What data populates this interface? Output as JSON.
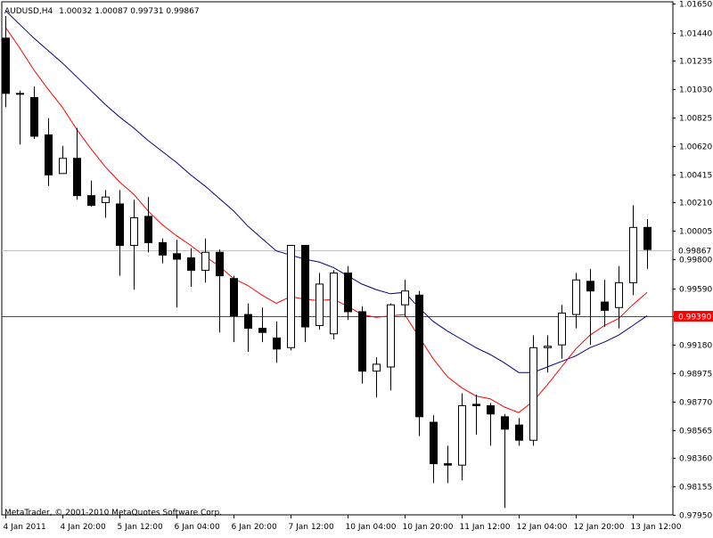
{
  "chart_data": {
    "type": "candlestick",
    "title": "AUDUSD,H4  1.00032 1.00087 0.99731 0.99867",
    "symbol": "AUDUSD,H4",
    "ohlc_header": "1.00032 1.00087 0.99731 0.99867",
    "copyright": "MetaTrader, © 2001-2010 MetaQuotes Software Corp.",
    "current_price": 0.99867,
    "current_price_label": "0.99867",
    "horizontal_level": 0.9939,
    "horizontal_level_label": "0.99390",
    "ylim": [
      0.9795,
      1.0165
    ],
    "y_ticks": [
      "1.01650",
      "1.01440",
      "1.01235",
      "1.01030",
      "1.00825",
      "1.00620",
      "1.00415",
      "1.00210",
      "1.00005",
      "0.99800",
      "0.99590",
      "0.99390",
      "0.99180",
      "0.98975",
      "0.98770",
      "0.98565",
      "0.98360",
      "0.98155",
      "0.97950"
    ],
    "x_ticks": [
      {
        "label": "4 Jan 2011",
        "bar": 0
      },
      {
        "label": "4 Jan 20:00",
        "bar": 4
      },
      {
        "label": "5 Jan 12:00",
        "bar": 8
      },
      {
        "label": "6 Jan 04:00",
        "bar": 12
      },
      {
        "label": "6 Jan 20:00",
        "bar": 16
      },
      {
        "label": "7 Jan 12:00",
        "bar": 20
      },
      {
        "label": "10 Jan 04:00",
        "bar": 24
      },
      {
        "label": "10 Jan 20:00",
        "bar": 28
      },
      {
        "label": "11 Jan 12:00",
        "bar": 32
      },
      {
        "label": "12 Jan 04:00",
        "bar": 36
      },
      {
        "label": "12 Jan 20:00",
        "bar": 40
      },
      {
        "label": "13 Jan 12:00",
        "bar": 44
      }
    ],
    "candles": [
      {
        "o": 1.014,
        "h": 1.0156,
        "l": 1.009,
        "c": 1.01
      },
      {
        "o": 1.01,
        "h": 1.0102,
        "l": 1.0063,
        "c": 1.01
      },
      {
        "o": 1.0097,
        "h": 1.0105,
        "l": 1.0067,
        "c": 1.0069
      },
      {
        "o": 1.007,
        "h": 1.0082,
        "l": 1.0033,
        "c": 1.0041
      },
      {
        "o": 1.0042,
        "h": 1.0062,
        "l": 1.0042,
        "c": 1.0053
      },
      {
        "o": 1.0053,
        "h": 1.0075,
        "l": 1.0023,
        "c": 1.0026
      },
      {
        "o": 1.0026,
        "h": 1.0037,
        "l": 1.0018,
        "c": 1.0019
      },
      {
        "o": 1.0021,
        "h": 1.003,
        "l": 1.001,
        "c": 1.0025
      },
      {
        "o": 1.002,
        "h": 1.003,
        "l": 0.9968,
        "c": 0.999
      },
      {
        "o": 0.999,
        "h": 1.0023,
        "l": 0.9958,
        "c": 1.001
      },
      {
        "o": 1.0011,
        "h": 1.0025,
        "l": 0.9985,
        "c": 0.9992
      },
      {
        "o": 0.9992,
        "h": 0.9995,
        "l": 0.9977,
        "c": 0.9983
      },
      {
        "o": 0.9984,
        "h": 0.9994,
        "l": 0.9945,
        "c": 0.998
      },
      {
        "o": 0.9981,
        "h": 0.9988,
        "l": 0.996,
        "c": 0.9972
      },
      {
        "o": 0.9972,
        "h": 0.9995,
        "l": 0.9963,
        "c": 0.9985
      },
      {
        "o": 0.9985,
        "h": 0.9987,
        "l": 0.9927,
        "c": 0.9968
      },
      {
        "o": 0.9966,
        "h": 0.9968,
        "l": 0.992,
        "c": 0.9939
      },
      {
        "o": 0.994,
        "h": 0.9948,
        "l": 0.9913,
        "c": 0.993
      },
      {
        "o": 0.993,
        "h": 0.9945,
        "l": 0.992,
        "c": 0.9927
      },
      {
        "o": 0.9923,
        "h": 0.9935,
        "l": 0.9905,
        "c": 0.9915
      },
      {
        "o": 0.9916,
        "h": 0.999,
        "l": 0.9914,
        "c": 0.999
      },
      {
        "o": 0.999,
        "h": 0.999,
        "l": 0.992,
        "c": 0.9931
      },
      {
        "o": 0.9932,
        "h": 0.997,
        "l": 0.9929,
        "c": 0.9962
      },
      {
        "o": 0.9926,
        "h": 0.9972,
        "l": 0.9922,
        "c": 0.997
      },
      {
        "o": 0.997,
        "h": 0.9975,
        "l": 0.9936,
        "c": 0.9942
      },
      {
        "o": 0.9942,
        "h": 0.9946,
        "l": 0.989,
        "c": 0.9899
      },
      {
        "o": 0.9899,
        "h": 0.9909,
        "l": 0.988,
        "c": 0.9904
      },
      {
        "o": 0.9902,
        "h": 0.9948,
        "l": 0.9885,
        "c": 0.9947
      },
      {
        "o": 0.9947,
        "h": 0.9965,
        "l": 0.9938,
        "c": 0.9957
      },
      {
        "o": 0.9954,
        "h": 0.9957,
        "l": 0.9852,
        "c": 0.9866
      },
      {
        "o": 0.9862,
        "h": 0.9867,
        "l": 0.9818,
        "c": 0.9832
      },
      {
        "o": 0.9832,
        "h": 0.9845,
        "l": 0.9818,
        "c": 0.9831
      },
      {
        "o": 0.9831,
        "h": 0.9883,
        "l": 0.982,
        "c": 0.9874
      },
      {
        "o": 0.9875,
        "h": 0.9882,
        "l": 0.9853,
        "c": 0.9874
      },
      {
        "o": 0.9874,
        "h": 0.9876,
        "l": 0.9845,
        "c": 0.9868
      },
      {
        "o": 0.9866,
        "h": 0.9868,
        "l": 0.98,
        "c": 0.9857
      },
      {
        "o": 0.986,
        "h": 0.9865,
        "l": 0.9845,
        "c": 0.9849
      },
      {
        "o": 0.9849,
        "h": 0.9925,
        "l": 0.9845,
        "c": 0.9916
      },
      {
        "o": 0.9916,
        "h": 0.9925,
        "l": 0.9898,
        "c": 0.9917
      },
      {
        "o": 0.9918,
        "h": 0.9947,
        "l": 0.9908,
        "c": 0.9941
      },
      {
        "o": 0.994,
        "h": 0.997,
        "l": 0.993,
        "c": 0.9965
      },
      {
        "o": 0.9964,
        "h": 0.9973,
        "l": 0.9918,
        "c": 0.9957
      },
      {
        "o": 0.9949,
        "h": 0.9965,
        "l": 0.9931,
        "c": 0.9943
      },
      {
        "o": 0.9945,
        "h": 0.9975,
        "l": 0.993,
        "c": 0.9963
      },
      {
        "o": 0.9963,
        "h": 1.0019,
        "l": 0.9954,
        "c": 1.0003
      },
      {
        "o": 1.0003,
        "h": 1.0009,
        "l": 0.9973,
        "c": 0.9987
      }
    ],
    "ma_fast": [
      1.0148,
      1.0133,
      1.0117,
      1.0103,
      1.009,
      1.0074,
      1.006,
      1.0047,
      1.0036,
      1.0027,
      1.0015,
      1.0005,
      0.9997,
      0.999,
      0.9982,
      0.9975,
      0.9966,
      0.9961,
      0.9954,
      0.9948,
      0.9953,
      0.9951,
      0.995,
      0.9951,
      0.9946,
      0.994,
      0.9938,
      0.9939,
      0.994,
      0.9924,
      0.9908,
      0.9895,
      0.9887,
      0.9881,
      0.9879,
      0.9873,
      0.9869,
      0.9877,
      0.9889,
      0.9902,
      0.9915,
      0.9925,
      0.9932,
      0.9937,
      0.9947,
      0.9956
    ],
    "ma_slow": [
      1.016,
      1.015,
      1.014,
      1.0131,
      1.0122,
      1.0112,
      1.0102,
      1.0092,
      1.0083,
      1.0075,
      1.0066,
      1.0058,
      1.005,
      1.0041,
      1.0033,
      1.0024,
      1.0015,
      1.0004,
      0.9995,
      0.9986,
      0.9983,
      0.998,
      0.9978,
      0.9974,
      0.9968,
      0.9962,
      0.9958,
      0.9955,
      0.9956,
      0.9945,
      0.9935,
      0.9928,
      0.9922,
      0.9916,
      0.9911,
      0.9905,
      0.9898,
      0.9898,
      0.9902,
      0.9906,
      0.991,
      0.9916,
      0.992,
      0.9925,
      0.9932,
      0.9939
    ],
    "colors": {
      "background": "#ffffff",
      "candle_outline": "#000000",
      "bull_body": "#ffffff",
      "bear_body": "#000000",
      "ma_fast": "#ff0000",
      "ma_slow": "#000080",
      "level_line": "#ff0000",
      "bid_line": "#c0c0c0",
      "price_tag_bg": "#ff0000",
      "price_tag_text": "#ffffff"
    },
    "grid": false
  }
}
